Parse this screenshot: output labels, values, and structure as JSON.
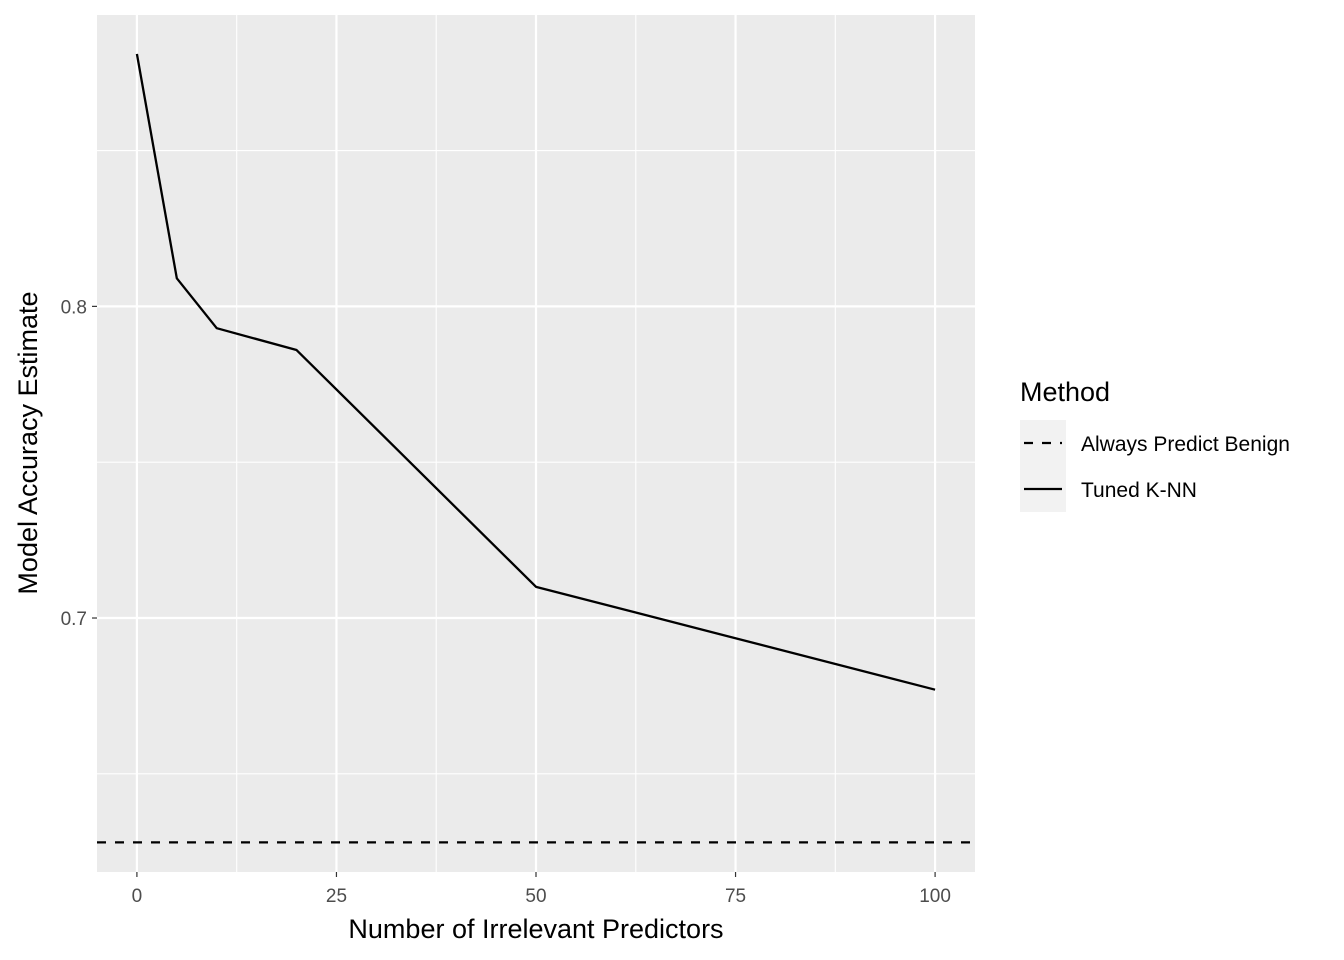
{
  "chart_data": {
    "type": "line",
    "xlabel": "Number of Irrelevant Predictors",
    "ylabel": "Model Accuracy Estimate",
    "xlim": [
      -5,
      105
    ],
    "ylim": [
      0.6185,
      0.8935
    ],
    "x_ticks": [
      0,
      25,
      50,
      75,
      100
    ],
    "x_tick_labels": [
      "0",
      "25",
      "50",
      "75",
      "100"
    ],
    "y_ticks": [
      0.7,
      0.8
    ],
    "y_tick_labels": [
      "0.7",
      "0.8"
    ],
    "grid": true,
    "panel_background": "#ebebeb",
    "grid_color": "#ffffff",
    "legend": {
      "title": "Method",
      "position": "right",
      "entries": [
        {
          "label": "Always Predict Benign",
          "linetype": "dashed"
        },
        {
          "label": "Tuned K-NN",
          "linetype": "solid"
        }
      ]
    },
    "series": [
      {
        "name": "Always Predict Benign",
        "linetype": "dashed",
        "color": "#000000",
        "span": "full",
        "x": [
          -5,
          105
        ],
        "y": [
          0.628,
          0.628
        ]
      },
      {
        "name": "Tuned K-NN",
        "linetype": "solid",
        "color": "#000000",
        "x": [
          0,
          5,
          10,
          20,
          50,
          100
        ],
        "y": [
          0.881,
          0.809,
          0.793,
          0.786,
          0.71,
          0.677
        ]
      }
    ]
  }
}
